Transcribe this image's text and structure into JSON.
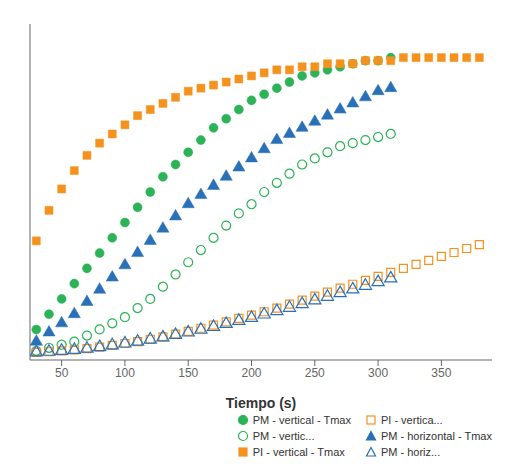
{
  "chart_data": {
    "type": "scatter",
    "xlabel": "Tiempo  (s)",
    "xlim": [
      25,
      390
    ],
    "xticks": [
      50,
      100,
      150,
      200,
      250,
      300,
      350
    ],
    "ylim": [
      -0.02,
      1.08
    ],
    "tick_labels": "x",
    "grid": false,
    "legend": "lower right",
    "series": [
      {
        "name": "PM - vertical - Tmax",
        "color": "#2db357",
        "marker": "circle",
        "x": [
          30,
          40,
          50,
          60,
          70,
          80,
          90,
          100,
          110,
          120,
          130,
          140,
          150,
          160,
          170,
          180,
          190,
          200,
          210,
          220,
          230,
          240,
          250,
          260,
          270,
          280,
          290,
          300,
          310
        ],
        "values": [
          0.08,
          0.13,
          0.18,
          0.23,
          0.28,
          0.33,
          0.38,
          0.43,
          0.48,
          0.53,
          0.58,
          0.62,
          0.66,
          0.7,
          0.74,
          0.77,
          0.8,
          0.83,
          0.85,
          0.87,
          0.89,
          0.91,
          0.92,
          0.93,
          0.94,
          0.95,
          0.96,
          0.96,
          0.97
        ]
      },
      {
        "name": "PM - vertic...",
        "color": "#2db357",
        "marker": "circle-open",
        "x": [
          30,
          40,
          50,
          60,
          70,
          80,
          90,
          100,
          110,
          120,
          130,
          140,
          150,
          160,
          170,
          180,
          190,
          200,
          210,
          220,
          230,
          240,
          250,
          260,
          270,
          280,
          290,
          300,
          310
        ],
        "values": [
          0.01,
          0.02,
          0.03,
          0.04,
          0.06,
          0.08,
          0.1,
          0.12,
          0.15,
          0.18,
          0.22,
          0.26,
          0.3,
          0.34,
          0.38,
          0.42,
          0.46,
          0.49,
          0.53,
          0.56,
          0.59,
          0.62,
          0.64,
          0.66,
          0.68,
          0.69,
          0.7,
          0.71,
          0.72
        ]
      },
      {
        "name": "PI - vertical - Tmax",
        "color": "#f5921e",
        "marker": "square",
        "x": [
          30,
          40,
          50,
          60,
          70,
          80,
          90,
          100,
          110,
          120,
          130,
          140,
          150,
          160,
          170,
          180,
          190,
          200,
          210,
          220,
          230,
          240,
          250,
          260,
          270,
          280,
          290,
          300,
          310,
          320,
          330,
          340,
          350,
          360,
          370,
          380
        ],
        "values": [
          0.37,
          0.47,
          0.54,
          0.6,
          0.65,
          0.69,
          0.72,
          0.75,
          0.78,
          0.8,
          0.82,
          0.84,
          0.86,
          0.87,
          0.88,
          0.89,
          0.9,
          0.91,
          0.92,
          0.93,
          0.93,
          0.94,
          0.94,
          0.95,
          0.95,
          0.95,
          0.96,
          0.96,
          0.96,
          0.97,
          0.97,
          0.97,
          0.97,
          0.97,
          0.97,
          0.97
        ]
      },
      {
        "name": "PI - vertica...",
        "color": "#f5921e",
        "marker": "square-open",
        "x": [
          30,
          40,
          50,
          60,
          70,
          80,
          90,
          100,
          110,
          120,
          130,
          140,
          150,
          160,
          170,
          180,
          190,
          200,
          210,
          220,
          230,
          240,
          250,
          260,
          270,
          280,
          290,
          300,
          310,
          320,
          330,
          340,
          350,
          360,
          370,
          380
        ],
        "values": [
          0.005,
          0.007,
          0.01,
          0.013,
          0.017,
          0.022,
          0.028,
          0.034,
          0.04,
          0.048,
          0.056,
          0.065,
          0.074,
          0.084,
          0.094,
          0.105,
          0.116,
          0.127,
          0.138,
          0.15,
          0.163,
          0.176,
          0.189,
          0.202,
          0.215,
          0.228,
          0.241,
          0.254,
          0.267,
          0.28,
          0.293,
          0.306,
          0.319,
          0.332,
          0.345,
          0.358
        ]
      },
      {
        "name": "PM - horizontal - Tmax",
        "color": "#2970b8",
        "marker": "triangle",
        "x": [
          30,
          40,
          50,
          60,
          70,
          80,
          90,
          100,
          110,
          120,
          130,
          140,
          150,
          160,
          170,
          180,
          190,
          200,
          210,
          220,
          230,
          240,
          250,
          260,
          270,
          280,
          290,
          300,
          310
        ],
        "values": [
          0.04,
          0.07,
          0.1,
          0.13,
          0.17,
          0.21,
          0.25,
          0.29,
          0.33,
          0.37,
          0.41,
          0.45,
          0.49,
          0.52,
          0.55,
          0.58,
          0.61,
          0.64,
          0.67,
          0.7,
          0.72,
          0.74,
          0.76,
          0.78,
          0.8,
          0.82,
          0.84,
          0.86,
          0.87
        ]
      },
      {
        "name": "PM - horiz...",
        "color": "#2970b8",
        "marker": "triangle-open",
        "x": [
          30,
          40,
          50,
          60,
          70,
          80,
          90,
          100,
          110,
          120,
          130,
          140,
          150,
          160,
          170,
          180,
          190,
          200,
          210,
          220,
          230,
          240,
          250,
          260,
          270,
          280,
          290,
          300,
          310
        ],
        "values": [
          0.005,
          0.007,
          0.01,
          0.013,
          0.017,
          0.022,
          0.028,
          0.034,
          0.04,
          0.047,
          0.054,
          0.062,
          0.07,
          0.079,
          0.088,
          0.098,
          0.108,
          0.118,
          0.129,
          0.14,
          0.151,
          0.163,
          0.175,
          0.187,
          0.199,
          0.211,
          0.223,
          0.235,
          0.247
        ]
      }
    ]
  }
}
